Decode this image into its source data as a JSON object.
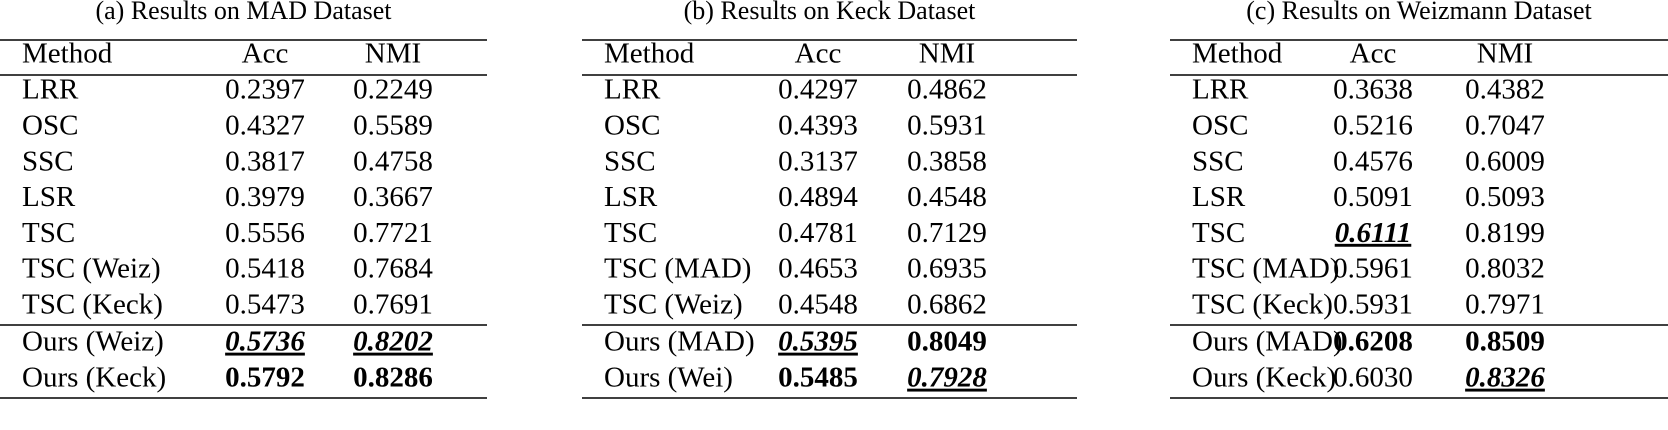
{
  "tables": [
    {
      "caption": "(a)  Results on MAD Dataset",
      "header": [
        "Method",
        "Acc",
        "NMI"
      ],
      "rows": [
        [
          "LRR",
          "0.2397",
          "0.2249"
        ],
        [
          "OSC",
          "0.4327",
          "0.5589"
        ],
        [
          "SSC",
          "0.3817",
          "0.4758"
        ],
        [
          "LSR",
          "0.3979",
          "0.3667"
        ],
        [
          "TSC",
          "0.5556",
          "0.7721"
        ],
        [
          "TSC (Weiz)",
          "0.5418",
          "0.7684"
        ],
        [
          "TSC (Keck)",
          "0.5473",
          "0.7691"
        ]
      ],
      "ours_rows": [
        [
          "Ours (Weiz)",
          {
            "text": "0.5736",
            "style": "bold-italic-underline"
          },
          {
            "text": "0.8202",
            "style": "bold-italic-underline"
          }
        ],
        [
          "Ours (Keck)",
          {
            "text": "0.5792",
            "style": "bold"
          },
          {
            "text": "0.8286",
            "style": "bold"
          }
        ]
      ]
    },
    {
      "caption": "(b)  Results on Keck Dataset",
      "header": [
        "Method",
        "Acc",
        "NMI"
      ],
      "rows": [
        [
          "LRR",
          "0.4297",
          "0.4862"
        ],
        [
          "OSC",
          "0.4393",
          "0.5931"
        ],
        [
          "SSC",
          "0.3137",
          "0.3858"
        ],
        [
          "LSR",
          "0.4894",
          "0.4548"
        ],
        [
          "TSC",
          "0.4781",
          "0.7129"
        ],
        [
          "TSC (MAD)",
          "0.4653",
          "0.6935"
        ],
        [
          "TSC (Weiz)",
          "0.4548",
          "0.6862"
        ]
      ],
      "ours_rows": [
        [
          "Ours (MAD)",
          {
            "text": "0.5395",
            "style": "bold-italic-underline"
          },
          {
            "text": "0.8049",
            "style": "bold"
          }
        ],
        [
          "Ours (Wei)",
          {
            "text": "0.5485",
            "style": "bold"
          },
          {
            "text": "0.7928",
            "style": "bold-italic-underline"
          }
        ]
      ]
    },
    {
      "caption": "(c)  Results on Weizmann Dataset",
      "header": [
        "Method",
        "Acc",
        "NMI"
      ],
      "rows": [
        [
          "LRR",
          "0.3638",
          "0.4382"
        ],
        [
          "OSC",
          "0.5216",
          "0.7047"
        ],
        [
          "SSC",
          "0.4576",
          "0.6009"
        ],
        [
          "LSR",
          "0.5091",
          "0.5093"
        ],
        [
          "TSC",
          {
            "text": "0.6111",
            "style": "bold-italic-underline"
          },
          "0.8199"
        ],
        [
          "TSC (MAD)",
          "0.5961",
          "0.8032"
        ],
        [
          "TSC (Keck)",
          "0.5931",
          "0.7971"
        ]
      ],
      "ours_rows": [
        [
          "Ours (MAD)",
          {
            "text": "0.6208",
            "style": "bold"
          },
          {
            "text": "0.8509",
            "style": "bold"
          }
        ],
        [
          "Ours (Keck)",
          "0.6030",
          {
            "text": "0.8326",
            "style": "bold-italic-underline"
          }
        ]
      ]
    }
  ]
}
